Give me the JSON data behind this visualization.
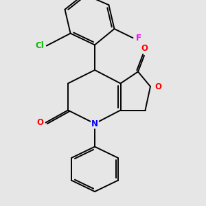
{
  "background_color": "#e6e6e6",
  "bond_color": "#000000",
  "bond_width": 1.4,
  "atom_colors": {
    "O": "#ff0000",
    "N": "#0000ff",
    "Cl": "#00bb00",
    "F": "#ff00ff",
    "C": "#000000"
  },
  "font_size_atom": 8.5,
  "figsize": [
    3.0,
    3.0
  ],
  "dpi": 100,
  "xlim": [
    0,
    10
  ],
  "ylim": [
    0,
    10
  ]
}
